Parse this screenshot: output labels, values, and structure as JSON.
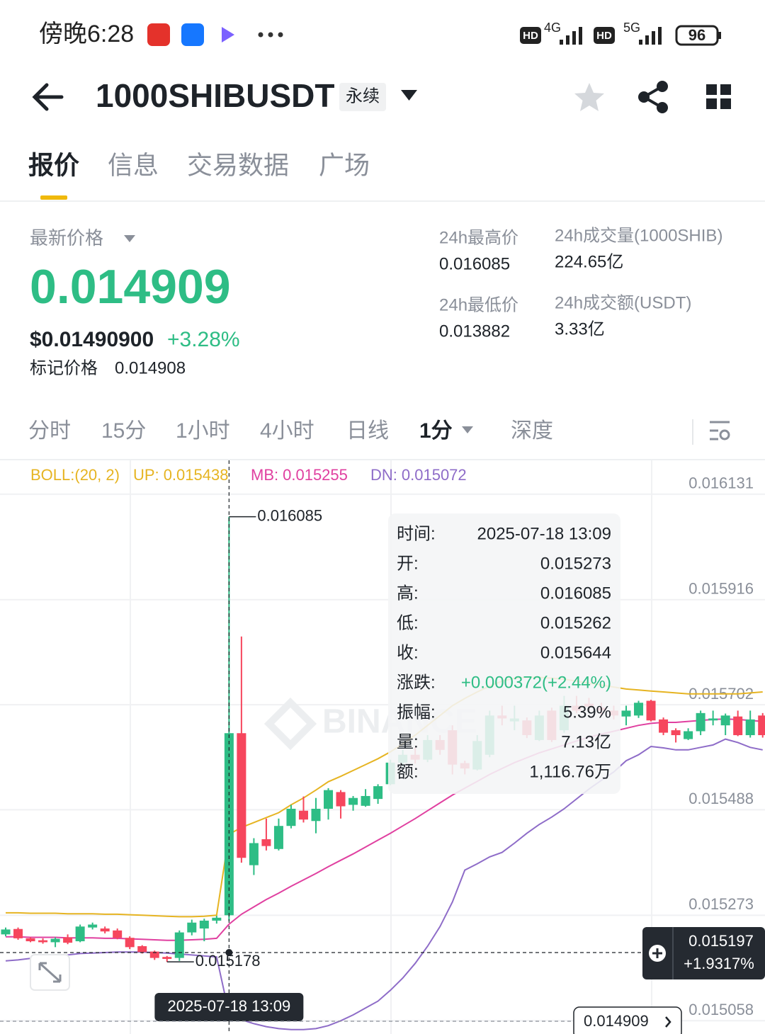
{
  "status_bar": {
    "time": "傍晚6:28",
    "hd": "HD",
    "net1": "4G",
    "net2": "5G",
    "battery": "96"
  },
  "header": {
    "symbol": "1000SHIBUSDT",
    "badge": "永续"
  },
  "tabs": [
    "报价",
    "信息",
    "交易数据",
    "广场"
  ],
  "quote": {
    "label": "最新价格",
    "price": "0.014909",
    "usd": "$0.01490900",
    "change": "+3.28%",
    "mark_label": "标记价格",
    "mark_price": "0.014908"
  },
  "stats": [
    {
      "label": "24h最高价",
      "value": "0.016085"
    },
    {
      "label": "24h成交量(1000SHIB)",
      "value": "224.65亿"
    },
    {
      "label": "24h最低价",
      "value": "0.013882"
    },
    {
      "label": "24h成交额(USDT)",
      "value": "3.33亿"
    }
  ],
  "intervals": [
    "分时",
    "15分",
    "1小时",
    "4小时",
    "日线",
    "1分",
    "深度"
  ],
  "chart_data": {
    "type": "candlestick",
    "indicator": "BOLL:(20, 2)",
    "watermark": "BINANCE",
    "up_color": "#2ebd85",
    "down_color": "#f6465d",
    "open": [
      0.015234,
      0.015245,
      0.015226,
      0.015222,
      0.015218,
      0.015228,
      0.01522,
      0.015248,
      0.015246,
      0.015242,
      0.015227,
      0.01521,
      0.015199,
      0.015188,
      0.015186,
      0.015238,
      0.015246,
      0.015262,
      0.015273,
      0.015644,
      0.015375,
      0.015428,
      0.015408,
      0.015455,
      0.015486,
      0.015465,
      0.01549,
      0.015524,
      0.015498,
      0.015496,
      0.01551,
      0.01554,
      0.015584,
      0.0156,
      0.01559,
      0.01563,
      0.01565,
      0.015583,
      0.01557,
      0.0156,
      0.01568,
      0.015668,
      0.01567,
      0.01563,
      0.01569,
      0.01565,
      0.0157,
      0.015704,
      0.015696,
      0.01569,
      0.015678,
      0.01568,
      0.01571,
      0.015672,
      0.01565,
      0.015632,
      0.015648,
      0.01567,
      0.01566,
      0.015678,
      0.01564,
      0.01568
    ],
    "high": [
      0.015248,
      0.015248,
      0.015228,
      0.015226,
      0.015228,
      0.015234,
      0.015254,
      0.015258,
      0.01525,
      0.015246,
      0.01523,
      0.015212,
      0.015201,
      0.01519,
      0.015242,
      0.015264,
      0.015266,
      0.015272,
      0.016085,
      0.015841,
      0.01543,
      0.01547,
      0.01547,
      0.015498,
      0.015515,
      0.015512,
      0.015532,
      0.015528,
      0.015516,
      0.01553,
      0.01554,
      0.01559,
      0.01561,
      0.015615,
      0.01564,
      0.01564,
      0.01566,
      0.015588,
      0.01564,
      0.01569,
      0.0157,
      0.0157,
      0.015676,
      0.01569,
      0.015696,
      0.01572,
      0.01572,
      0.015716,
      0.015706,
      0.0157,
      0.0157,
      0.01571,
      0.015712,
      0.015676,
      0.015654,
      0.015654,
      0.01569,
      0.01569,
      0.015684,
      0.01569,
      0.01569,
      0.015685
    ],
    "low": [
      0.01523,
      0.015223,
      0.015218,
      0.015215,
      0.015208,
      0.015214,
      0.015218,
      0.015244,
      0.015236,
      0.015224,
      0.015204,
      0.015195,
      0.015182,
      0.015178,
      0.01518,
      0.015232,
      0.01522,
      0.015256,
      0.015262,
      0.01538,
      0.015355,
      0.015405,
      0.015405,
      0.01545,
      0.015462,
      0.01544,
      0.015468,
      0.01547,
      0.015486,
      0.015494,
      0.0155,
      0.015538,
      0.015575,
      0.015582,
      0.015585,
      0.0156,
      0.01556,
      0.01556,
      0.015568,
      0.015595,
      0.01566,
      0.01565,
      0.015634,
      0.015628,
      0.015626,
      0.015645,
      0.015685,
      0.01569,
      0.01568,
      0.015672,
      0.01566,
      0.015675,
      0.015668,
      0.01564,
      0.015625,
      0.01563,
      0.01564,
      0.01566,
      0.01564,
      0.015638,
      0.015635,
      0.015635
    ],
    "close": [
      0.015244,
      0.015226,
      0.01522,
      0.015218,
      0.015225,
      0.015217,
      0.01525,
      0.015254,
      0.01524,
      0.015227,
      0.015208,
      0.015198,
      0.015186,
      0.015184,
      0.015238,
      0.015258,
      0.015262,
      0.015268,
      0.015644,
      0.01539,
      0.01542,
      0.015414,
      0.015455,
      0.01549,
      0.015468,
      0.01549,
      0.015528,
      0.015495,
      0.015512,
      0.015516,
      0.015536,
      0.015584,
      0.0156,
      0.01559,
      0.01563,
      0.01561,
      0.01558,
      0.015572,
      0.015628,
      0.01568,
      0.015674,
      0.015674,
      0.01564,
      0.01568,
      0.01563,
      0.0157,
      0.01569,
      0.015698,
      0.01569,
      0.01568,
      0.01569,
      0.015706,
      0.01567,
      0.015645,
      0.01564,
      0.015648,
      0.015685,
      0.015674,
      0.01568,
      0.01564,
      0.015672,
      0.01564
    ],
    "series": [
      {
        "name": "UP:",
        "color": "#e6b422",
        "values": [
          0.015278,
          0.015278,
          0.015277,
          0.015277,
          0.015277,
          0.015276,
          0.015276,
          0.015276,
          0.015275,
          0.015275,
          0.015274,
          0.015273,
          0.015272,
          0.015271,
          0.01527,
          0.01527,
          0.015271,
          0.015273,
          0.015438,
          0.015452,
          0.015462,
          0.015472,
          0.015482,
          0.015498,
          0.015512,
          0.015528,
          0.015545,
          0.015556,
          0.015568,
          0.01558,
          0.015592,
          0.015606,
          0.015622,
          0.01564,
          0.01566,
          0.01568,
          0.0157,
          0.015715,
          0.015728,
          0.01574,
          0.01575,
          0.015756,
          0.015758,
          0.015758,
          0.015756,
          0.015754,
          0.01575,
          0.015746,
          0.015742,
          0.015738,
          0.015734,
          0.015732,
          0.01573,
          0.015728,
          0.015726,
          0.015724,
          0.015724,
          0.015724,
          0.015724,
          0.015724,
          0.015726,
          0.015728
        ]
      },
      {
        "name": "MB:",
        "color": "#e040a0",
        "values": [
          0.015229,
          0.015229,
          0.015228,
          0.015228,
          0.015228,
          0.015227,
          0.015227,
          0.015227,
          0.015226,
          0.015226,
          0.015225,
          0.015224,
          0.015223,
          0.015222,
          0.015222,
          0.015223,
          0.015224,
          0.015226,
          0.015255,
          0.015275,
          0.01529,
          0.015305,
          0.015318,
          0.015332,
          0.015345,
          0.015358,
          0.015372,
          0.015385,
          0.015398,
          0.015412,
          0.015426,
          0.01544,
          0.015455,
          0.01547,
          0.015486,
          0.015502,
          0.015518,
          0.015532,
          0.015546,
          0.01556,
          0.015572,
          0.015584,
          0.015594,
          0.015604,
          0.015612,
          0.01562,
          0.015628,
          0.015636,
          0.015642,
          0.015648,
          0.015654,
          0.01566,
          0.015664,
          0.015666,
          0.015666,
          0.015668,
          0.01567,
          0.015672,
          0.015673,
          0.015672,
          0.01567,
          0.015668
        ]
      },
      {
        "name": "DN:",
        "color": "#8e6cc8",
        "values": [
          0.01518,
          0.015182,
          0.015185,
          0.015188,
          0.01519,
          0.015192,
          0.015195,
          0.015196,
          0.015197,
          0.015198,
          0.015198,
          0.015198,
          0.015197,
          0.015196,
          0.015194,
          0.015192,
          0.01519,
          0.015188,
          0.015072,
          0.01506,
          0.015052,
          0.015046,
          0.015042,
          0.01504,
          0.01504,
          0.015042,
          0.015048,
          0.015058,
          0.01507,
          0.015084,
          0.015098,
          0.01512,
          0.015145,
          0.015175,
          0.01521,
          0.01525,
          0.0153,
          0.015365,
          0.015378,
          0.015392,
          0.015401,
          0.01542,
          0.01544,
          0.015458,
          0.015473,
          0.01549,
          0.01551,
          0.01553,
          0.015548,
          0.015565,
          0.015588,
          0.0156,
          0.015617,
          0.015614,
          0.01561,
          0.01561,
          0.015615,
          0.01562,
          0.015632,
          0.015625,
          0.015615,
          0.01561
        ]
      }
    ],
    "ylim": [
      0.015031,
      0.0162
    ],
    "yticks": [
      0.016131,
      0.015916,
      0.015702,
      0.015488,
      0.015273,
      0.015058
    ],
    "grid": true,
    "crosshair": {
      "price": 0.015197,
      "change": "+1.9317%",
      "time": "2025-07-18 13:09"
    },
    "tooltip": {
      "rows": [
        {
          "label": "时间:"
        },
        {
          "label": "开:"
        },
        {
          "label": "高:"
        },
        {
          "label": "低:"
        },
        {
          "label": "收:"
        },
        {
          "label": "涨跌:",
          "value": "+0.000372(+2.44%)"
        },
        {
          "label": "振幅:",
          "value": "5.39%"
        },
        {
          "label": "量:",
          "value": "7.13亿"
        },
        {
          "label": "额:",
          "value": "1,116.76万"
        }
      ]
    }
  }
}
